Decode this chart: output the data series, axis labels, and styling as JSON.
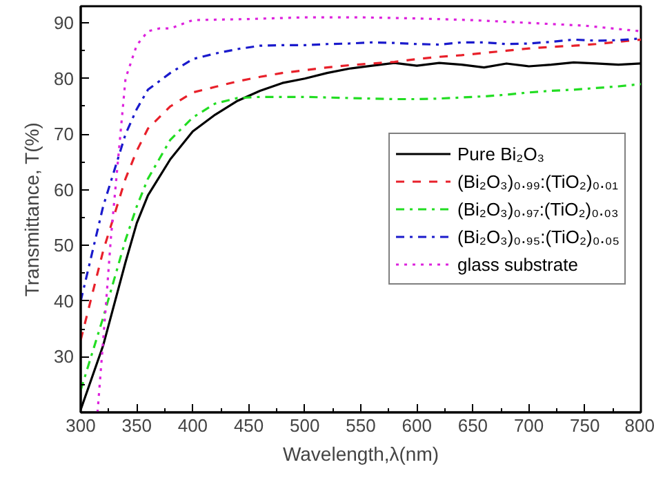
{
  "chart_data": {
    "type": "line",
    "xlabel": "Wavelength,λ(nm)",
    "ylabel": "Transmittance, T(%)",
    "x": [
      300,
      320,
      340,
      350,
      360,
      380,
      400,
      420,
      440,
      460,
      480,
      500,
      520,
      540,
      560,
      580,
      600,
      620,
      640,
      660,
      680,
      700,
      720,
      740,
      760,
      780,
      800
    ],
    "series": [
      {
        "name": "Pure Bi₂O₃",
        "color": "#000000",
        "line_style": "solid",
        "values": [
          20.5,
          32,
          47,
          54,
          59,
          65.5,
          70.5,
          73.5,
          76,
          77.8,
          79.2,
          80,
          81,
          81.8,
          82.3,
          82.8,
          82.3,
          82.8,
          82.5,
          82,
          82.7,
          82.2,
          82.5,
          82.9,
          82.7,
          82.5,
          82.7
        ]
      },
      {
        "name": "(Bi₂O₃)₀.₉₉:(TiO₂)₀.₀₁",
        "color": "#e8202a",
        "line_style": "dashed",
        "values": [
          33,
          49,
          62,
          67,
          71,
          75,
          77.5,
          78.5,
          79.5,
          80.3,
          81,
          81.5,
          82,
          82.4,
          82.7,
          83,
          83.5,
          83.9,
          84.2,
          84.6,
          85,
          85.4,
          85.7,
          85.9,
          86.2,
          86.6,
          87
        ]
      },
      {
        "name": "(Bi₂O₃)₀.₉₇:(TiO₂)₀.₀₃",
        "color": "#22dd22",
        "line_style": "dashdot",
        "values": [
          24,
          37,
          51,
          57,
          62,
          69,
          73,
          75.5,
          76.5,
          76.7,
          76.7,
          76.7,
          76.6,
          76.5,
          76.4,
          76.3,
          76.3,
          76.4,
          76.6,
          76.8,
          77.1,
          77.5,
          77.8,
          78,
          78.3,
          78.6,
          79
        ]
      },
      {
        "name": "(Bi₂O₃)₀.₉₅:(TiO₂)₀.₀₅",
        "color": "#1a1acc",
        "line_style": "dashdot",
        "values": [
          40,
          57,
          70,
          74.5,
          78,
          81,
          83.5,
          84.5,
          85.3,
          85.9,
          86,
          86,
          86.2,
          86.3,
          86.5,
          86.4,
          86.2,
          86.1,
          86.5,
          86.5,
          86.2,
          86.3,
          86.6,
          87,
          86.8,
          86.9,
          87.2
        ]
      },
      {
        "name": "glass substrate",
        "color": "#dd22dd",
        "line_style": "dotted",
        "x": [
          315,
          322,
          327,
          340,
          350,
          360,
          370,
          380,
          400,
          450,
          500,
          550,
          600,
          650,
          700,
          750,
          800
        ],
        "values": [
          20,
          38,
          51.5,
          80,
          86,
          88.5,
          89,
          89,
          90.5,
          90.7,
          91,
          91,
          90.8,
          90.5,
          90,
          89.5,
          88.5
        ]
      }
    ],
    "xlim": [
      300,
      800
    ],
    "ylim": [
      20,
      93
    ],
    "xticks": [
      300,
      350,
      400,
      450,
      500,
      550,
      600,
      650,
      700,
      750,
      800
    ],
    "yticks": [
      30,
      40,
      50,
      60,
      70,
      80,
      90
    ],
    "grid": false,
    "legend": "right"
  }
}
